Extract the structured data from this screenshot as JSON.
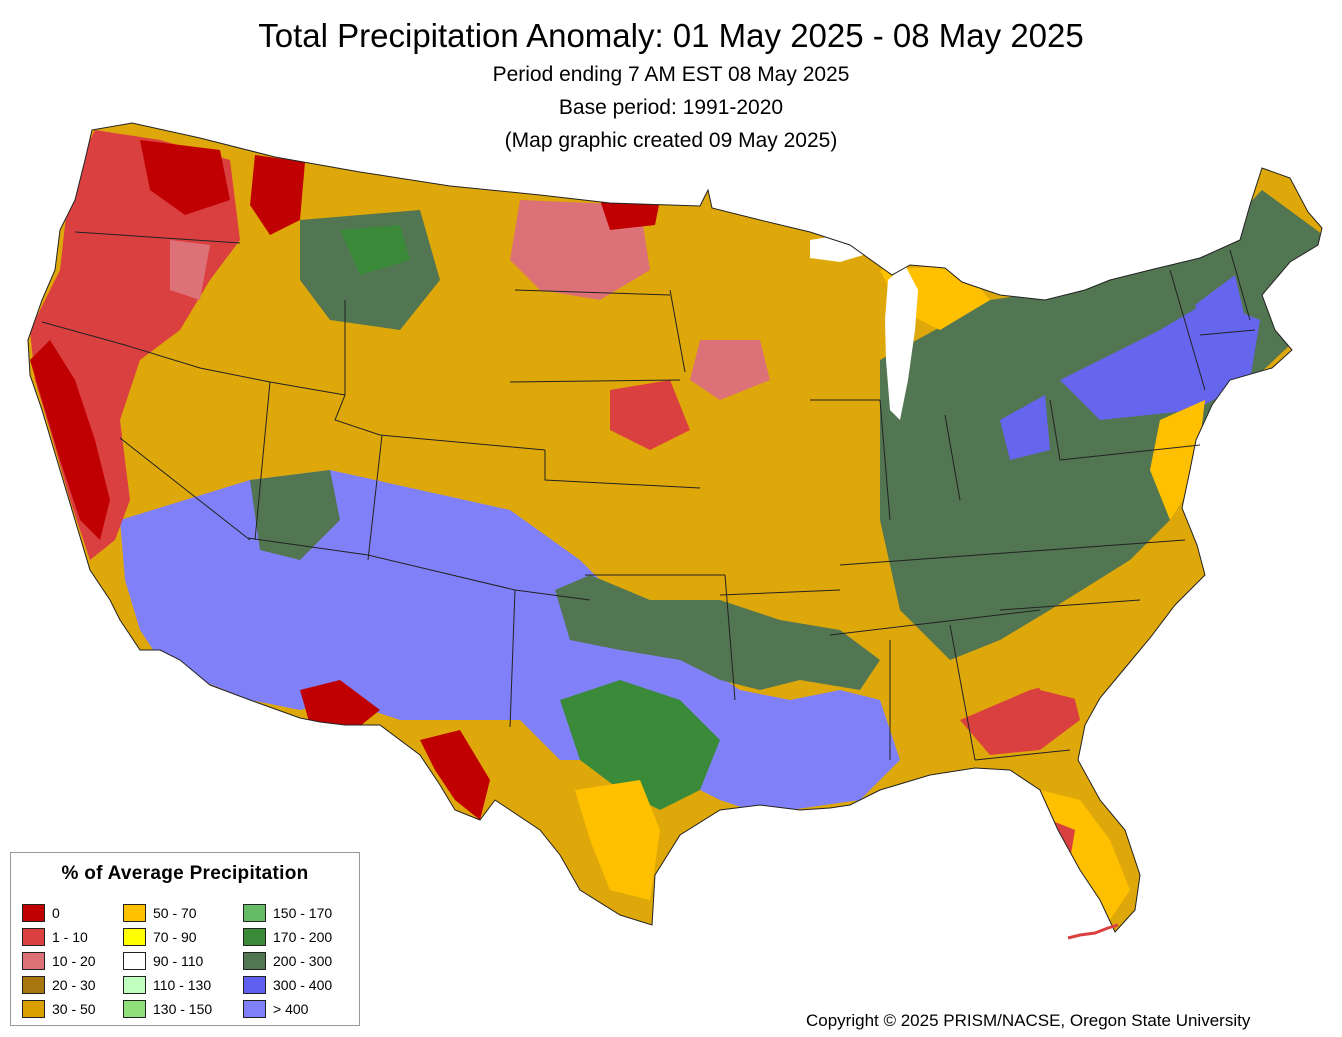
{
  "title": "Total Precipitation Anomaly: 01 May 2025 - 08 May 2025",
  "subtitles": [
    "Period ending 7 AM EST 08 May 2025",
    "Base period: 1991-2020",
    "(Map graphic created 09 May 2025)"
  ],
  "legend": {
    "title": "% of Average Precipitation",
    "items": [
      {
        "label": "0",
        "color": "#c00000"
      },
      {
        "label": "1 - 10",
        "color": "#db4040"
      },
      {
        "label": "10 - 20",
        "color": "#dc7178"
      },
      {
        "label": "20 - 30",
        "color": "#a8760f"
      },
      {
        "label": "30 - 50",
        "color": "#d9a000"
      },
      {
        "label": "50 - 70",
        "color": "#ffc000"
      },
      {
        "label": "70 - 90",
        "color": "#ffff00"
      },
      {
        "label": "90 - 110",
        "color": "#ffffff"
      },
      {
        "label": "110 - 130",
        "color": "#c0ffc0"
      },
      {
        "label": "130 - 150",
        "color": "#8fdf7a"
      },
      {
        "label": "150 - 170",
        "color": "#66bb66"
      },
      {
        "label": "170 - 200",
        "color": "#3a8a3a"
      },
      {
        "label": "200 - 300",
        "color": "#527552"
      },
      {
        "label": "300 - 400",
        "color": "#6060f0"
      },
      {
        "label": "> 400",
        "color": "#8080f8"
      }
    ]
  },
  "copyright": "Copyright © 2025 PRISM/NACSE, Oregon State University"
}
